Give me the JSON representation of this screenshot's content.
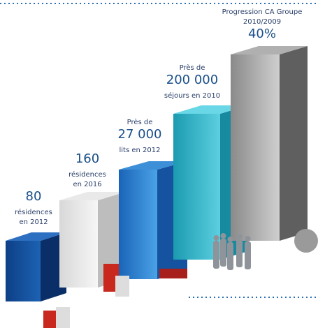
{
  "items": [
    {
      "lines": [
        "80",
        "résidences",
        "en 2012"
      ]
    },
    {
      "lines": [
        "160",
        "résidences",
        "en 2016"
      ]
    },
    {
      "lines": [
        "Près de",
        "27 000",
        "lits en 2012"
      ]
    },
    {
      "lines": [
        "Près de",
        "200 000",
        "séjours en 2010"
      ]
    },
    {
      "lines": [
        "Progression CA Groupe",
        "2010/2009",
        "40%"
      ]
    }
  ]
}
